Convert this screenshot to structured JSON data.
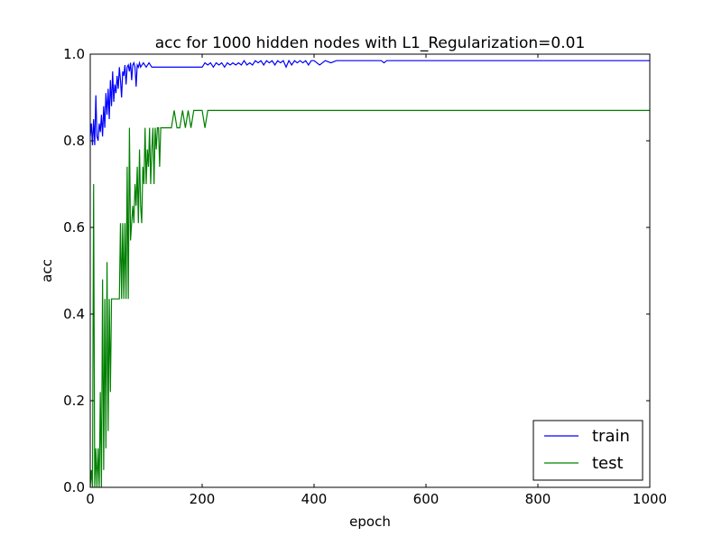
{
  "chart_data": {
    "type": "line",
    "title": "acc for 1000 hidden nodes with L1_Regularization=0.01",
    "xlabel": "epoch",
    "ylabel": "acc",
    "xlim": [
      0,
      1000
    ],
    "ylim": [
      0.0,
      1.0
    ],
    "xticks": [
      "0",
      "200",
      "400",
      "600",
      "800",
      "1000"
    ],
    "yticks": [
      "0.0",
      "0.2",
      "0.4",
      "0.6",
      "0.8",
      "1.0"
    ],
    "grid": false,
    "legend_position": "lower right",
    "series": [
      {
        "name": "train",
        "color": "#0000ff",
        "x": [
          0,
          2,
          4,
          6,
          8,
          10,
          12,
          14,
          16,
          18,
          20,
          22,
          24,
          26,
          28,
          30,
          32,
          34,
          36,
          38,
          40,
          42,
          44,
          46,
          48,
          50,
          52,
          54,
          56,
          58,
          60,
          62,
          64,
          66,
          68,
          70,
          72,
          74,
          76,
          78,
          80,
          82,
          84,
          86,
          88,
          90,
          95,
          100,
          105,
          110,
          115,
          200,
          205,
          210,
          215,
          220,
          225,
          230,
          235,
          240,
          245,
          250,
          255,
          260,
          265,
          270,
          275,
          280,
          285,
          290,
          295,
          300,
          305,
          310,
          315,
          320,
          325,
          330,
          335,
          340,
          345,
          350,
          355,
          360,
          365,
          370,
          375,
          380,
          385,
          390,
          395,
          400,
          410,
          420,
          430,
          440,
          450,
          520,
          525,
          530,
          1000
        ],
        "y": [
          0.81,
          0.84,
          0.79,
          0.85,
          0.79,
          0.905,
          0.81,
          0.8,
          0.84,
          0.82,
          0.86,
          0.81,
          0.88,
          0.83,
          0.91,
          0.86,
          0.92,
          0.85,
          0.94,
          0.88,
          0.96,
          0.89,
          0.93,
          0.91,
          0.95,
          0.92,
          0.97,
          0.94,
          0.9,
          0.96,
          0.95,
          0.975,
          0.93,
          0.97,
          0.975,
          0.96,
          0.98,
          0.94,
          0.975,
          0.98,
          0.97,
          0.925,
          0.975,
          0.97,
          0.98,
          0.97,
          0.98,
          0.97,
          0.98,
          0.97,
          0.97,
          0.97,
          0.98,
          0.975,
          0.98,
          0.97,
          0.98,
          0.975,
          0.98,
          0.97,
          0.98,
          0.975,
          0.98,
          0.975,
          0.98,
          0.975,
          0.985,
          0.975,
          0.98,
          0.975,
          0.985,
          0.98,
          0.985,
          0.975,
          0.985,
          0.98,
          0.985,
          0.975,
          0.985,
          0.98,
          0.985,
          0.97,
          0.985,
          0.975,
          0.985,
          0.98,
          0.985,
          0.98,
          0.985,
          0.975,
          0.985,
          0.985,
          0.975,
          0.985,
          0.98,
          0.985,
          0.985,
          0.985,
          0.98,
          0.985,
          0.985
        ]
      },
      {
        "name": "test",
        "color": "#008000",
        "x": [
          0,
          2,
          4,
          6,
          8,
          10,
          12,
          14,
          16,
          18,
          20,
          22,
          24,
          26,
          28,
          30,
          32,
          34,
          36,
          38,
          40,
          42,
          44,
          46,
          48,
          50,
          52,
          54,
          56,
          58,
          60,
          62,
          64,
          66,
          68,
          70,
          72,
          74,
          76,
          78,
          80,
          82,
          84,
          86,
          88,
          90,
          92,
          94,
          96,
          98,
          100,
          102,
          104,
          106,
          108,
          110,
          112,
          114,
          116,
          118,
          120,
          122,
          124,
          126,
          128,
          130,
          132,
          134,
          136,
          138,
          140,
          145,
          150,
          155,
          160,
          165,
          170,
          175,
          180,
          185,
          190,
          195,
          200,
          205,
          210,
          1000
        ],
        "y": [
          0.0,
          0.04,
          0.0,
          0.7,
          0.0,
          0.09,
          0.0,
          0.09,
          0.0,
          0.22,
          0.0,
          0.48,
          0.04,
          0.435,
          0.09,
          0.52,
          0.13,
          0.435,
          0.22,
          0.435,
          0.435,
          0.435,
          0.435,
          0.435,
          0.435,
          0.435,
          0.435,
          0.61,
          0.435,
          0.61,
          0.435,
          0.61,
          0.435,
          0.74,
          0.435,
          0.83,
          0.57,
          0.61,
          0.65,
          0.61,
          0.7,
          0.65,
          0.74,
          0.61,
          0.78,
          0.65,
          0.61,
          0.74,
          0.7,
          0.83,
          0.7,
          0.78,
          0.74,
          0.83,
          0.7,
          0.78,
          0.83,
          0.7,
          0.83,
          0.78,
          0.83,
          0.83,
          0.74,
          0.83,
          0.83,
          0.83,
          0.83,
          0.83,
          0.83,
          0.83,
          0.83,
          0.83,
          0.87,
          0.83,
          0.83,
          0.87,
          0.83,
          0.87,
          0.83,
          0.87,
          0.87,
          0.87,
          0.87,
          0.83,
          0.87,
          0.87
        ]
      }
    ]
  }
}
